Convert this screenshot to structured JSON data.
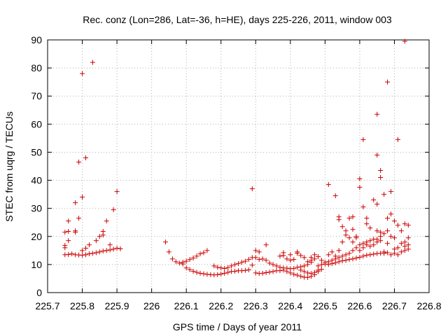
{
  "chart_data": {
    "type": "scatter",
    "title": "Rec. conz (Lon=286, Lat=-36, h=HE), days 225-226, 2011, window 003",
    "xlabel": "GPS time / Days of year 2011",
    "ylabel": "STEC from uqrg / TECUs",
    "xlim": [
      225.7,
      226.8
    ],
    "ylim": [
      0,
      90
    ],
    "xticks": [
      225.7,
      225.8,
      225.9,
      226,
      226.1,
      226.2,
      226.3,
      226.4,
      226.5,
      226.6,
      226.7,
      226.8
    ],
    "xtick_labels": [
      "225.7",
      "225.8",
      "225.9",
      "226",
      "226.1",
      "226.2",
      "226.3",
      "226.4",
      "226.5",
      "226.6",
      "226.7",
      "226.8"
    ],
    "yticks": [
      0,
      10,
      20,
      30,
      40,
      50,
      60,
      70,
      80,
      90
    ],
    "ytick_labels": [
      "0",
      "10",
      "20",
      "30",
      "40",
      "50",
      "60",
      "70",
      "80",
      "90"
    ],
    "grid": true,
    "legend": "none",
    "marker": "plus",
    "color": "#cc0000",
    "points": [
      [
        225.75,
        13.5
      ],
      [
        225.76,
        13.6
      ],
      [
        225.77,
        13.8
      ],
      [
        225.78,
        13.5
      ],
      [
        225.79,
        13.4
      ],
      [
        225.8,
        13.3
      ],
      [
        225.81,
        13.5
      ],
      [
        225.82,
        13.8
      ],
      [
        225.83,
        14.0
      ],
      [
        225.84,
        14.2
      ],
      [
        225.85,
        14.5
      ],
      [
        225.86,
        14.8
      ],
      [
        225.87,
        15.0
      ],
      [
        225.88,
        15.2
      ],
      [
        225.89,
        15.5
      ],
      [
        225.9,
        15.8
      ],
      [
        225.91,
        15.6
      ],
      [
        225.75,
        16.0
      ],
      [
        225.75,
        16.8
      ],
      [
        225.76,
        18.5
      ],
      [
        225.78,
        21.5
      ],
      [
        225.79,
        26.5
      ],
      [
        225.8,
        34.0
      ],
      [
        225.81,
        48.0
      ],
      [
        225.79,
        46.5
      ],
      [
        225.8,
        78.0
      ],
      [
        225.83,
        82.0
      ],
      [
        225.75,
        21.5
      ],
      [
        225.76,
        21.8
      ],
      [
        225.76,
        25.5
      ],
      [
        225.78,
        22.0
      ],
      [
        225.78,
        32.0
      ],
      [
        225.8,
        15.0
      ],
      [
        225.81,
        15.8
      ],
      [
        225.82,
        17.0
      ],
      [
        225.84,
        18.5
      ],
      [
        225.85,
        20.0
      ],
      [
        225.86,
        20.5
      ],
      [
        225.86,
        21.8
      ],
      [
        225.87,
        25.5
      ],
      [
        225.88,
        17.0
      ],
      [
        225.89,
        29.5
      ],
      [
        225.9,
        36.0
      ],
      [
        226.04,
        18.0
      ],
      [
        226.05,
        14.5
      ],
      [
        226.06,
        12.0
      ],
      [
        226.07,
        11.0
      ],
      [
        226.08,
        10.5
      ],
      [
        226.09,
        10.8
      ],
      [
        226.1,
        11.2
      ],
      [
        226.11,
        11.8
      ],
      [
        226.12,
        12.3
      ],
      [
        226.13,
        13.0
      ],
      [
        226.14,
        13.8
      ],
      [
        226.15,
        14.2
      ],
      [
        226.16,
        15.0
      ],
      [
        226.09,
        10.2
      ],
      [
        226.1,
        8.8
      ],
      [
        226.11,
        8.2
      ],
      [
        226.12,
        7.6
      ],
      [
        226.13,
        7.2
      ],
      [
        226.14,
        6.9
      ],
      [
        226.15,
        6.7
      ],
      [
        226.16,
        6.5
      ],
      [
        226.17,
        6.4
      ],
      [
        226.18,
        6.3
      ],
      [
        226.19,
        6.4
      ],
      [
        226.2,
        6.6
      ],
      [
        226.21,
        6.9
      ],
      [
        226.22,
        7.2
      ],
      [
        226.23,
        7.5
      ],
      [
        226.24,
        7.6
      ],
      [
        226.25,
        7.8
      ],
      [
        226.18,
        9.5
      ],
      [
        226.19,
        9.0
      ],
      [
        226.2,
        8.8
      ],
      [
        226.21,
        8.6
      ],
      [
        226.22,
        8.9
      ],
      [
        226.23,
        9.5
      ],
      [
        226.24,
        10.0
      ],
      [
        226.25,
        10.3
      ],
      [
        226.26,
        10.8
      ],
      [
        226.27,
        11.2
      ],
      [
        226.28,
        11.8
      ],
      [
        226.29,
        12.5
      ],
      [
        226.3,
        15.0
      ],
      [
        226.31,
        14.5
      ],
      [
        226.32,
        12.0
      ],
      [
        226.33,
        17.0
      ],
      [
        226.29,
        37.0
      ],
      [
        226.26,
        7.8
      ],
      [
        226.27,
        7.9
      ],
      [
        226.28,
        8.1
      ],
      [
        226.29,
        9.8
      ],
      [
        226.3,
        7.0
      ],
      [
        226.31,
        6.8
      ],
      [
        226.32,
        6.9
      ],
      [
        226.33,
        7.1
      ],
      [
        226.34,
        7.3
      ],
      [
        226.35,
        7.5
      ],
      [
        226.36,
        7.8
      ],
      [
        226.3,
        12.5
      ],
      [
        226.31,
        11.8
      ],
      [
        226.33,
        11.5
      ],
      [
        226.34,
        10.5
      ],
      [
        226.35,
        10.0
      ],
      [
        226.36,
        9.5
      ],
      [
        226.37,
        9.0
      ],
      [
        226.38,
        8.8
      ],
      [
        226.39,
        8.7
      ],
      [
        226.4,
        8.5
      ],
      [
        226.41,
        8.6
      ],
      [
        226.42,
        9.0
      ],
      [
        226.43,
        9.2
      ],
      [
        226.44,
        9.5
      ],
      [
        226.45,
        10.0
      ],
      [
        226.46,
        10.8
      ],
      [
        226.37,
        13.0
      ],
      [
        226.38,
        13.2
      ],
      [
        226.39,
        12.0
      ],
      [
        226.4,
        11.5
      ],
      [
        226.41,
        11.8
      ],
      [
        226.42,
        14.0
      ],
      [
        226.43,
        13.2
      ],
      [
        226.44,
        12.5
      ],
      [
        226.45,
        11.0
      ],
      [
        226.46,
        11.5
      ],
      [
        226.47,
        12.0
      ],
      [
        226.37,
        7.8
      ],
      [
        226.38,
        8.0
      ],
      [
        226.39,
        7.5
      ],
      [
        226.4,
        7.0
      ],
      [
        226.41,
        6.5
      ],
      [
        226.42,
        6.2
      ],
      [
        226.43,
        5.8
      ],
      [
        226.44,
        5.5
      ],
      [
        226.45,
        5.4
      ],
      [
        226.46,
        5.8
      ],
      [
        226.47,
        6.4
      ],
      [
        226.48,
        7.5
      ],
      [
        226.49,
        8.3
      ],
      [
        226.38,
        14.2
      ],
      [
        226.4,
        13.5
      ],
      [
        226.42,
        14.5
      ],
      [
        226.43,
        8.0
      ],
      [
        226.44,
        7.5
      ],
      [
        226.45,
        7.0
      ],
      [
        226.46,
        6.8
      ],
      [
        226.47,
        7.2
      ],
      [
        226.48,
        8.0
      ],
      [
        226.46,
        12.5
      ],
      [
        226.47,
        13.5
      ],
      [
        226.48,
        12.8
      ],
      [
        226.49,
        11.5
      ],
      [
        226.5,
        10.2
      ],
      [
        226.51,
        10.0
      ],
      [
        226.52,
        10.3
      ],
      [
        226.53,
        10.6
      ],
      [
        226.54,
        11.0
      ],
      [
        226.55,
        11.3
      ],
      [
        226.56,
        11.5
      ],
      [
        226.57,
        11.8
      ],
      [
        226.58,
        12.0
      ],
      [
        226.59,
        12.3
      ],
      [
        226.6,
        12.6
      ],
      [
        226.61,
        13.0
      ],
      [
        226.62,
        13.3
      ],
      [
        226.63,
        13.5
      ],
      [
        226.64,
        13.7
      ],
      [
        226.65,
        13.9
      ],
      [
        226.66,
        14.0
      ],
      [
        226.67,
        14.0
      ],
      [
        226.68,
        14.2
      ],
      [
        226.48,
        9.5
      ],
      [
        226.49,
        10.0
      ],
      [
        226.5,
        10.8
      ],
      [
        226.51,
        11.0
      ],
      [
        226.52,
        11.5
      ],
      [
        226.53,
        12.0
      ],
      [
        226.54,
        12.5
      ],
      [
        226.55,
        13.0
      ],
      [
        226.56,
        13.5
      ],
      [
        226.57,
        14.0
      ],
      [
        226.58,
        15.0
      ],
      [
        226.59,
        16.0
      ],
      [
        226.6,
        17.0
      ],
      [
        226.61,
        17.5
      ],
      [
        226.62,
        18.0
      ],
      [
        226.63,
        18.5
      ],
      [
        226.64,
        19.0
      ],
      [
        226.65,
        19.0
      ],
      [
        226.66,
        20.0
      ],
      [
        226.67,
        21.0
      ],
      [
        226.68,
        22.0
      ],
      [
        226.51,
        13.5
      ],
      [
        226.52,
        14.5
      ],
      [
        226.53,
        13.0
      ],
      [
        226.54,
        15.0
      ],
      [
        226.55,
        18.0
      ],
      [
        226.56,
        20.5
      ],
      [
        226.57,
        19.5
      ],
      [
        226.58,
        18.0
      ],
      [
        226.59,
        20.0
      ],
      [
        226.6,
        15.0
      ],
      [
        226.61,
        16.0
      ],
      [
        226.62,
        17.0
      ],
      [
        226.63,
        16.5
      ],
      [
        226.64,
        17.0
      ],
      [
        226.65,
        18.0
      ],
      [
        226.66,
        18.5
      ],
      [
        226.51,
        38.5
      ],
      [
        226.53,
        34.5
      ],
      [
        226.54,
        27.0
      ],
      [
        226.54,
        26.0
      ],
      [
        226.55,
        23.5
      ],
      [
        226.56,
        22.0
      ],
      [
        226.57,
        26.5
      ],
      [
        226.58,
        27.0
      ],
      [
        226.58,
        22.5
      ],
      [
        226.59,
        19.5
      ],
      [
        226.6,
        40.5
      ],
      [
        226.6,
        37.5
      ],
      [
        226.61,
        30.5
      ],
      [
        226.61,
        54.5
      ],
      [
        226.62,
        26.5
      ],
      [
        226.62,
        24.5
      ],
      [
        226.63,
        23.0
      ],
      [
        226.64,
        33.0
      ],
      [
        226.65,
        31.5
      ],
      [
        226.65,
        49.0
      ],
      [
        226.66,
        43.5
      ],
      [
        226.66,
        41.0
      ],
      [
        226.67,
        35.0
      ],
      [
        226.68,
        26.5
      ],
      [
        226.68,
        75.0
      ],
      [
        226.65,
        63.5
      ],
      [
        226.69,
        36.0
      ],
      [
        226.69,
        28.0
      ],
      [
        226.7,
        25.5
      ],
      [
        226.71,
        54.5
      ],
      [
        226.73,
        89.5
      ],
      [
        226.65,
        22.0
      ],
      [
        226.66,
        21.5
      ],
      [
        226.67,
        14.5
      ],
      [
        226.68,
        17.5
      ],
      [
        226.69,
        20.0
      ],
      [
        226.7,
        19.5
      ],
      [
        226.71,
        24.0
      ],
      [
        226.72,
        22.0
      ],
      [
        226.73,
        24.5
      ],
      [
        226.74,
        24.0
      ],
      [
        226.69,
        13.5
      ],
      [
        226.7,
        14.0
      ],
      [
        226.71,
        13.5
      ],
      [
        226.72,
        14.5
      ],
      [
        226.73,
        15.0
      ],
      [
        226.74,
        15.5
      ],
      [
        226.7,
        15.5
      ],
      [
        226.71,
        16.0
      ],
      [
        226.72,
        17.5
      ],
      [
        226.73,
        18.0
      ],
      [
        226.74,
        19.5
      ],
      [
        226.73,
        16.5
      ],
      [
        226.74,
        17.0
      ]
    ]
  }
}
